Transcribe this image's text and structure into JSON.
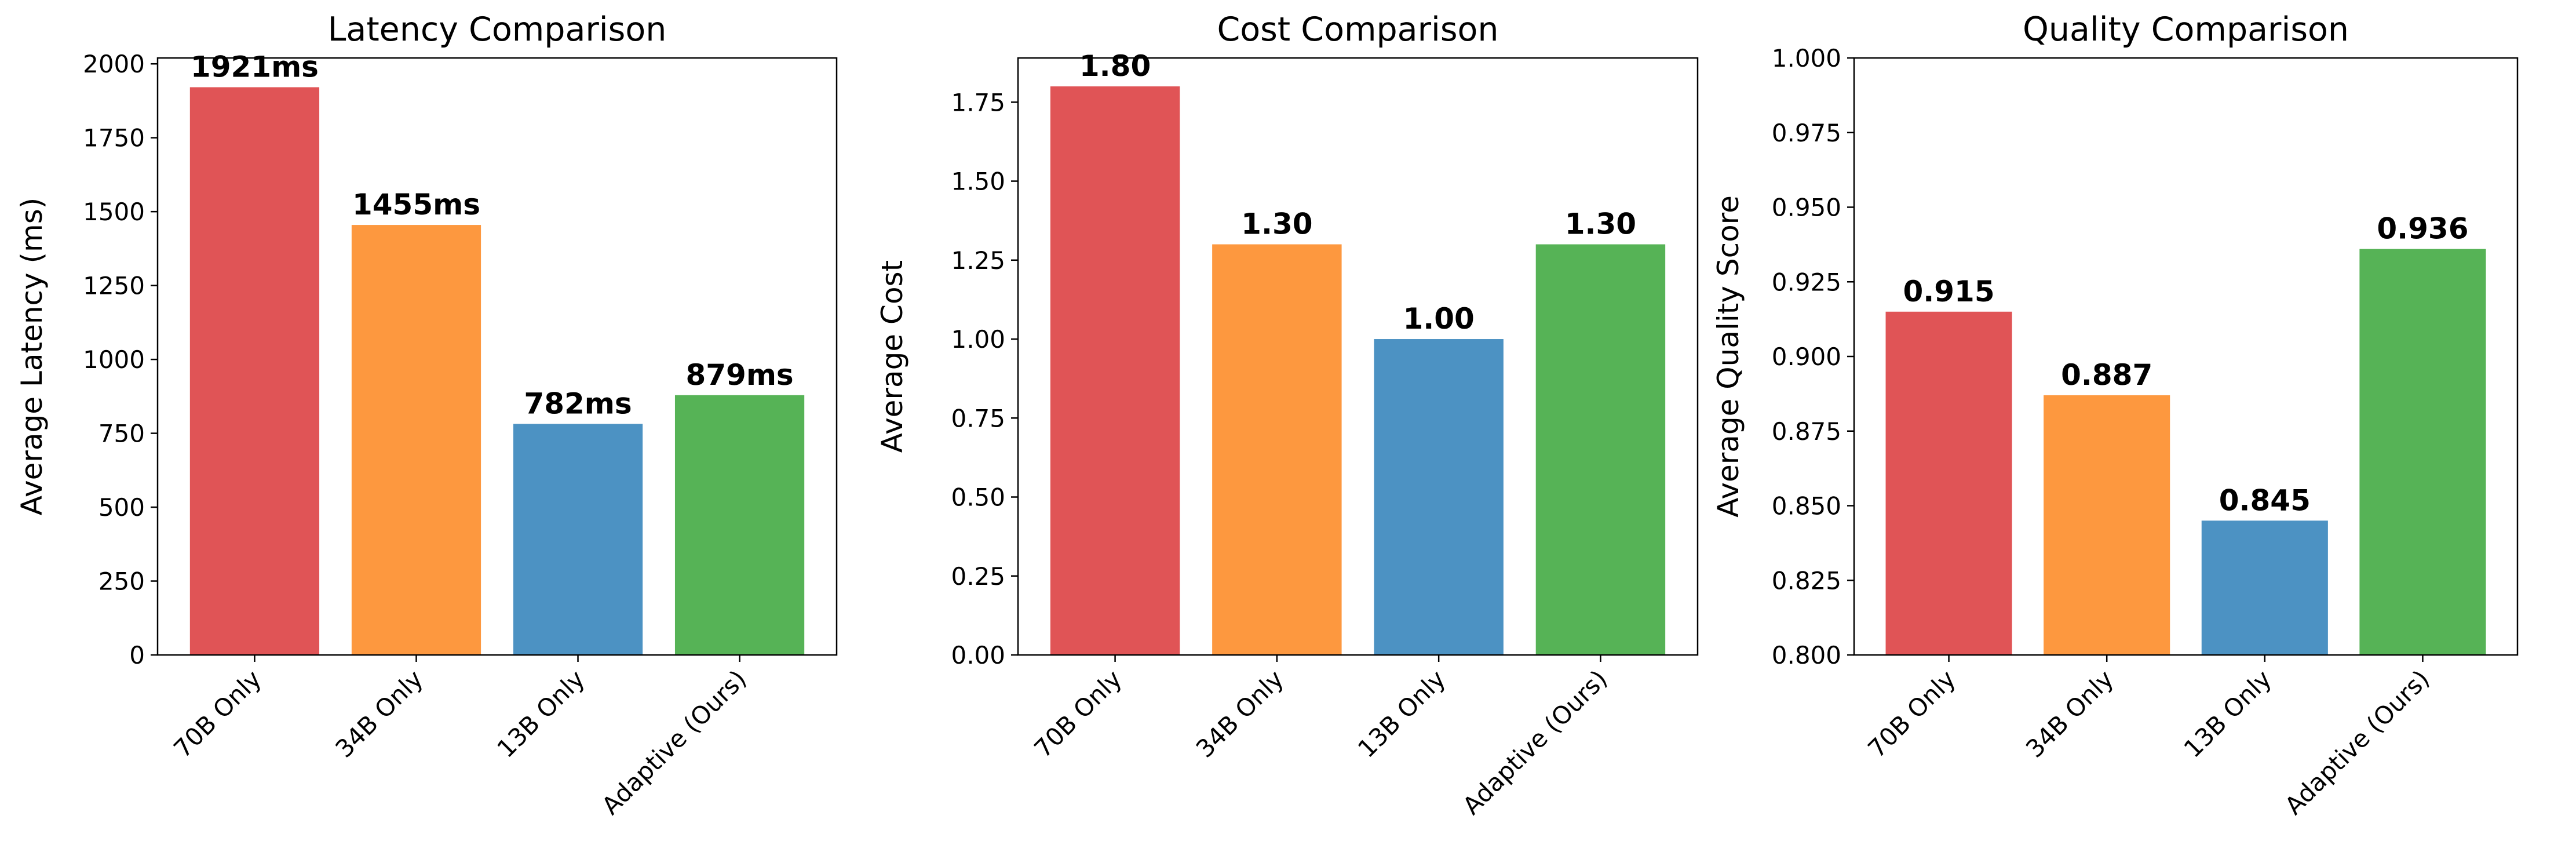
{
  "chart_data": [
    {
      "type": "bar",
      "title": "Latency Comparison",
      "xlabel": "",
      "ylabel": "Average Latency (ms)",
      "categories": [
        "70B Only",
        "34B Only",
        "13B Only",
        "Adaptive (Ours)"
      ],
      "values": [
        1921,
        1455,
        782,
        879
      ],
      "value_labels": [
        "1921ms",
        "1455ms",
        "782ms",
        "879ms"
      ],
      "ylim": [
        0,
        2020
      ],
      "yticks": [
        0,
        250,
        500,
        750,
        1000,
        1250,
        1500,
        1750,
        2000
      ],
      "ytick_labels": [
        "0",
        "250",
        "500",
        "750",
        "1000",
        "1250",
        "1500",
        "1750",
        "2000"
      ],
      "grid": false
    },
    {
      "type": "bar",
      "title": "Cost Comparison",
      "xlabel": "",
      "ylabel": "Average Cost",
      "categories": [
        "70B Only",
        "34B Only",
        "13B Only",
        "Adaptive (Ours)"
      ],
      "values": [
        1.8,
        1.3,
        1.0,
        1.3
      ],
      "value_labels": [
        "1.80",
        "1.30",
        "1.00",
        "1.30"
      ],
      "ylim": [
        0,
        1.89
      ],
      "yticks": [
        0,
        0.25,
        0.5,
        0.75,
        1.0,
        1.25,
        1.5,
        1.75
      ],
      "ytick_labels": [
        "0.00",
        "0.25",
        "0.50",
        "0.75",
        "1.00",
        "1.25",
        "1.50",
        "1.75"
      ],
      "grid": false
    },
    {
      "type": "bar",
      "title": "Quality Comparison",
      "xlabel": "",
      "ylabel": "Average Quality Score",
      "categories": [
        "70B Only",
        "34B Only",
        "13B Only",
        "Adaptive (Ours)"
      ],
      "values": [
        0.915,
        0.887,
        0.845,
        0.936
      ],
      "value_labels": [
        "0.915",
        "0.887",
        "0.845",
        "0.936"
      ],
      "ylim": [
        0.8,
        1.0
      ],
      "yticks": [
        0.8,
        0.825,
        0.85,
        0.875,
        0.9,
        0.925,
        0.95,
        0.975,
        1.0
      ],
      "ytick_labels": [
        "0.800",
        "0.825",
        "0.850",
        "0.875",
        "0.900",
        "0.925",
        "0.950",
        "0.975",
        "1.000"
      ],
      "grid": false
    }
  ],
  "colors": {
    "bars": [
      "#e05456",
      "#fd983f",
      "#4c92c3",
      "#56b356"
    ],
    "axis": "#000000",
    "background": "#ffffff"
  }
}
